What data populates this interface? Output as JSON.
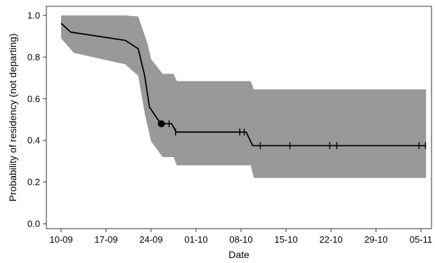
{
  "chart_data": {
    "type": "line",
    "title": "",
    "xlabel": "Date",
    "ylabel": "Probability of residency (not departing)",
    "x_scale": "date",
    "xlim": [
      "2023-09-08",
      "2023-11-06"
    ],
    "ylim": [
      0,
      1
    ],
    "x_ticks": [
      "2023-09-10",
      "2023-09-17",
      "2023-09-24",
      "2023-10-01",
      "2023-10-08",
      "2023-10-15",
      "2023-10-22",
      "2023-10-29",
      "2023-11-05"
    ],
    "x_tick_labels": [
      "10-09",
      "17-09",
      "24-09",
      "01-10",
      "08-10",
      "15-10",
      "22-10",
      "29-10",
      "05-11"
    ],
    "y_ticks": [
      0.0,
      0.2,
      0.4,
      0.6,
      0.8,
      1.0
    ],
    "y_tick_labels": [
      "0.0",
      "0.2",
      "0.4",
      "0.6",
      "0.8",
      "1.0"
    ],
    "grid": false,
    "colors": {
      "band": "#999999",
      "line": "#000000",
      "axis": "#333333"
    },
    "series": [
      {
        "values": [
          {
            "x": "2023-09-10",
            "y": 0.962
          },
          {
            "x": "2023-09-11.5",
            "y": 0.92
          },
          {
            "x": "2023-09-20",
            "y": 0.88
          },
          {
            "x": "2023-09-22",
            "y": 0.84
          },
          {
            "x": "2023-09-23",
            "y": 0.71
          },
          {
            "x": "2023-09-23.75",
            "y": 0.56
          },
          {
            "x": "2023-09-25.5",
            "y": 0.48
          },
          {
            "x": "2023-09-27.2",
            "y": 0.48
          },
          {
            "x": "2023-09-27.9",
            "y": 0.44
          },
          {
            "x": "2023-10-08.8",
            "y": 0.44
          },
          {
            "x": "2023-10-09.8",
            "y": 0.375
          },
          {
            "x": "2023-11-05.8",
            "y": 0.375
          }
        ]
      }
    ],
    "confidence_band": {
      "upper": [
        {
          "x": "2023-09-10",
          "y": 1.0
        },
        {
          "x": "2023-09-20",
          "y": 1.0
        },
        {
          "x": "2023-09-22",
          "y": 0.995
        },
        {
          "x": "2023-09-23.5",
          "y": 0.86
        },
        {
          "x": "2023-09-24",
          "y": 0.79
        },
        {
          "x": "2023-09-25.8",
          "y": 0.72
        },
        {
          "x": "2023-09-27.5",
          "y": 0.72
        },
        {
          "x": "2023-09-28",
          "y": 0.685
        },
        {
          "x": "2023-10-09.5",
          "y": 0.685
        },
        {
          "x": "2023-10-10",
          "y": 0.645
        },
        {
          "x": "2023-11-05.8",
          "y": 0.645
        }
      ],
      "lower": [
        {
          "x": "2023-09-10",
          "y": 0.89
        },
        {
          "x": "2023-09-12",
          "y": 0.82
        },
        {
          "x": "2023-09-20",
          "y": 0.765
        },
        {
          "x": "2023-09-22",
          "y": 0.71
        },
        {
          "x": "2023-09-23",
          "y": 0.53
        },
        {
          "x": "2023-09-24",
          "y": 0.395
        },
        {
          "x": "2023-09-25.8",
          "y": 0.32
        },
        {
          "x": "2023-09-27.5",
          "y": 0.32
        },
        {
          "x": "2023-09-28",
          "y": 0.28
        },
        {
          "x": "2023-10-09.5",
          "y": 0.28
        },
        {
          "x": "2023-10-10",
          "y": 0.22
        },
        {
          "x": "2023-11-05.8",
          "y": 0.22
        }
      ]
    },
    "censor_marks": [
      {
        "x": "2023-09-26.8",
        "y": 0.48
      },
      {
        "x": "2023-09-27.8",
        "y": 0.44
      },
      {
        "x": "2023-10-07.8",
        "y": 0.44
      },
      {
        "x": "2023-10-08.5",
        "y": 0.44
      },
      {
        "x": "2023-10-11",
        "y": 0.375
      },
      {
        "x": "2023-10-15.6",
        "y": 0.375
      },
      {
        "x": "2023-10-21.8",
        "y": 0.375
      },
      {
        "x": "2023-10-22.9",
        "y": 0.375
      },
      {
        "x": "2023-11-04.7",
        "y": 0.375
      },
      {
        "x": "2023-11-05.7",
        "y": 0.375
      }
    ],
    "highlight_point": {
      "x": "2023-09-25.6",
      "y": 0.48
    }
  }
}
